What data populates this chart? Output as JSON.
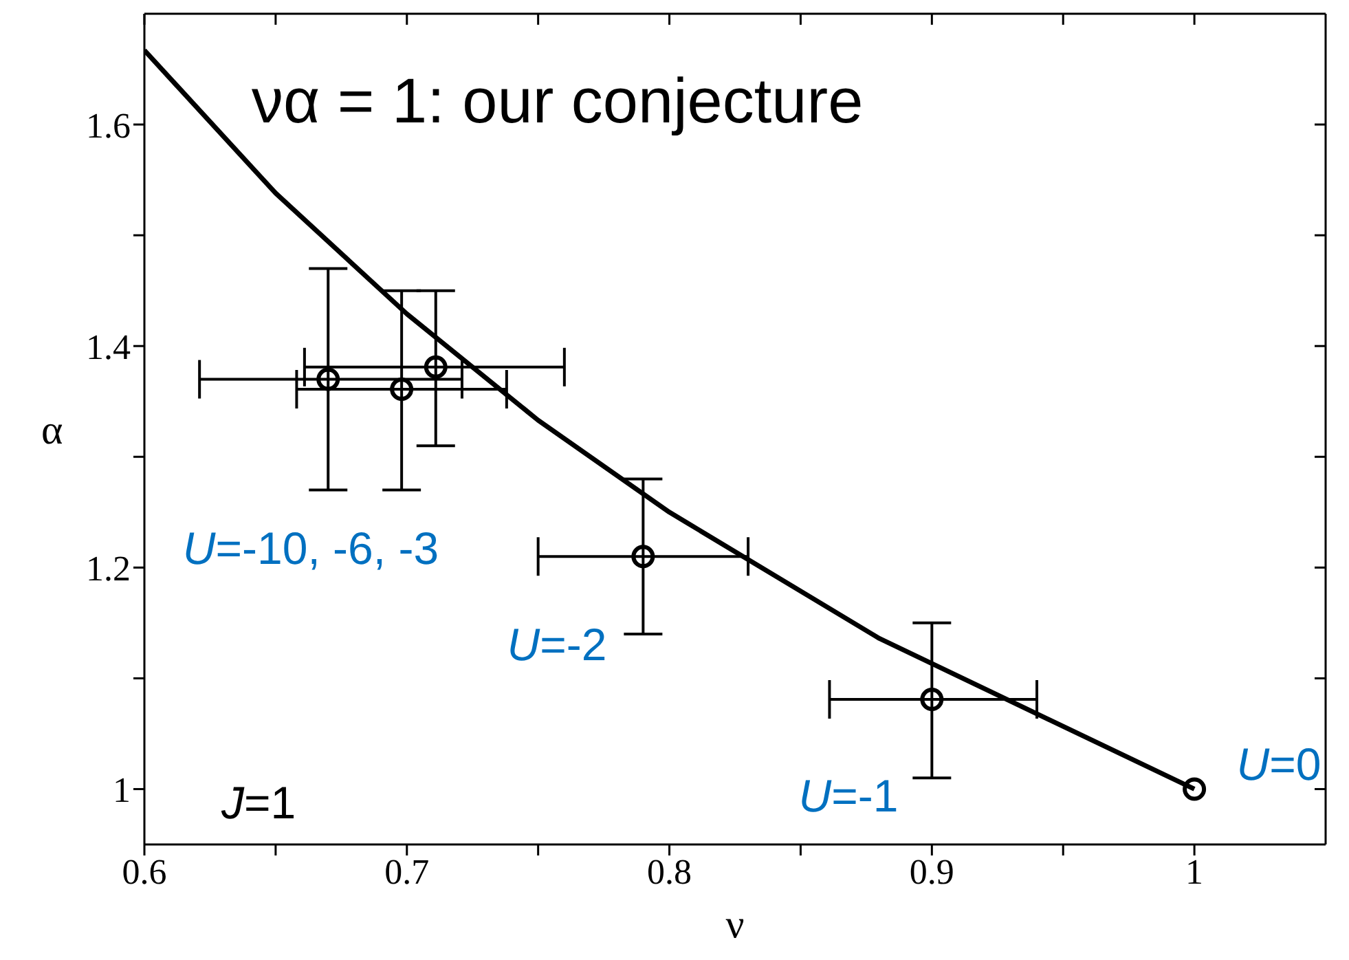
{
  "chart_data": {
    "type": "scatter",
    "title": "να = 1: our conjecture",
    "xlabel": "ν",
    "ylabel": "α",
    "xlim": [
      0.6,
      1.05
    ],
    "xticks": [
      0.6,
      {
        "value": 0.65,
        "label": null
      },
      0.7,
      {
        "value": 0.75,
        "label": null
      },
      0.8,
      {
        "value": 0.85,
        "label": null
      },
      0.9,
      {
        "value": 0.95,
        "label": null
      },
      1
    ],
    "ylim": [
      0.95,
      1.7
    ],
    "yticks": [
      {
        "value": 1,
        "label": "1"
      },
      {
        "value": 1.1,
        "label": null
      },
      1.2,
      {
        "value": 1.3,
        "label": null
      },
      1.4,
      {
        "value": 1.5,
        "label": null
      },
      1.6
    ],
    "series": [
      {
        "type": "line",
        "color": "#000000",
        "line_style": "solid",
        "x": [
          0.6,
          0.65,
          0.7,
          0.75,
          0.8,
          0.88,
          1.0
        ],
        "values": [
          1.667,
          1.538,
          1.429,
          1.333,
          1.25,
          1.136,
          1.0
        ]
      },
      {
        "color": "#000000",
        "marker": "circle",
        "x": [
          0.67,
          0.698,
          0.711,
          0.79,
          0.9,
          1.0
        ],
        "values": [
          1.37,
          1.361,
          1.381,
          1.21,
          1.081,
          1.0
        ],
        "errors": [
          [
            1.27,
            1.47
          ],
          [
            1.27,
            1.45
          ],
          [
            1.31,
            1.45
          ],
          [
            1.14,
            1.28
          ],
          [
            1.01,
            1.15
          ],
          null
        ],
        "xerrors": [
          [
            0.621,
            0.721
          ],
          [
            0.658,
            0.738
          ],
          [
            0.661,
            0.76
          ],
          [
            0.75,
            0.83
          ],
          [
            0.861,
            0.94
          ],
          null
        ]
      }
    ],
    "annotations": [
      "U=-10, -6, -3",
      "U=-2",
      "U=-1",
      "U=0",
      "J=1"
    ]
  }
}
